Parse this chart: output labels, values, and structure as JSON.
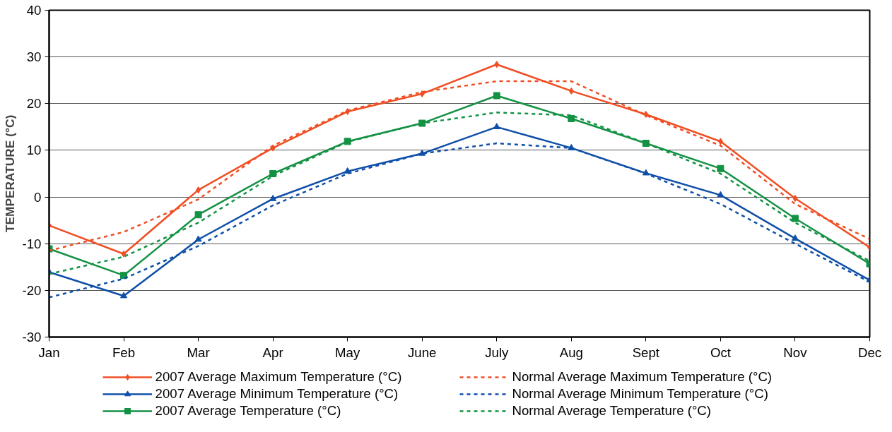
{
  "chart_data": {
    "type": "line",
    "ylabel": "TEMPERATURE (°C)",
    "categories": [
      "Jan",
      "Feb",
      "Mar",
      "Apr",
      "May",
      "June",
      "July",
      "Aug",
      "Sept",
      "Oct",
      "Nov",
      "Dec"
    ],
    "ylim": [
      -30,
      40
    ],
    "yticks": [
      -30,
      -20,
      -10,
      0,
      10,
      20,
      30,
      40
    ],
    "grid": "y",
    "legend": "bottom",
    "series": [
      {
        "name": "2007 Average Maximum Temperature (°C)",
        "color": "#f04e23",
        "marker": "diamond",
        "line_style": "solid",
        "values": [
          -6.1,
          -12.2,
          1.5,
          10.5,
          18.3,
          22.1,
          28.4,
          22.7,
          17.7,
          11.9,
          -0.3,
          -10.8
        ]
      },
      {
        "name": "2007 Average Minimum Temperature (°C)",
        "color": "#0f4fa8",
        "marker": "triangle",
        "line_style": "solid",
        "values": [
          -16.1,
          -21.2,
          -9.1,
          -0.4,
          5.5,
          9.3,
          15,
          10.5,
          5.1,
          0.4,
          -8.9,
          -17.8
        ]
      },
      {
        "name": "2007 Average Temperature (°C)",
        "color": "#149244",
        "marker": "square",
        "line_style": "solid",
        "values": [
          -11.1,
          -16.8,
          -3.8,
          5,
          11.9,
          15.8,
          21.7,
          16.8,
          11.5,
          6.1,
          -4.6,
          -14.3
        ]
      },
      {
        "name": "Normal Average Maximum Temperature (°C)",
        "color": "#f04e23",
        "marker": "none",
        "line_style": "dashed",
        "values": [
          -11.5,
          -7.5,
          -0.5,
          11,
          18.5,
          22.5,
          24.8,
          24.8,
          17.5,
          11,
          -1.5,
          -9
        ]
      },
      {
        "name": "Normal Average Minimum Temperature (°C)",
        "color": "#0f4fa8",
        "marker": "none",
        "line_style": "dashed",
        "values": [
          -21.5,
          -17.5,
          -10.5,
          -1.8,
          5,
          9.3,
          11.5,
          10.5,
          5,
          -1.5,
          -10,
          -18.2
        ]
      },
      {
        "name": "Normal Average Temperature (°C)",
        "color": "#149244",
        "marker": "none",
        "line_style": "dashed",
        "values": [
          -16.5,
          -12.8,
          -5.5,
          4.5,
          11.8,
          15.8,
          18.1,
          17.5,
          11.5,
          5,
          -5.5,
          -13.7
        ]
      }
    ]
  }
}
